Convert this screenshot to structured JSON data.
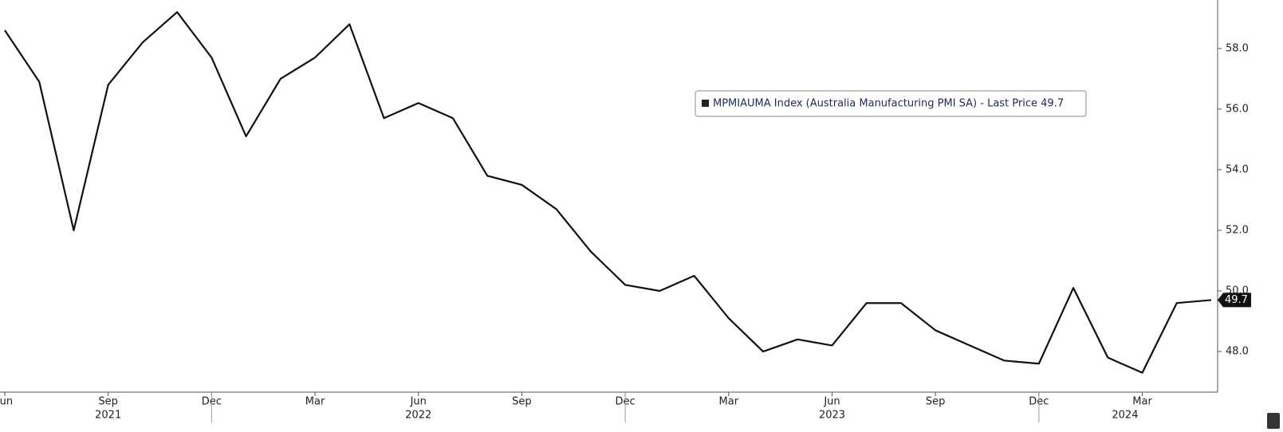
{
  "chart_data": {
    "type": "line",
    "legend": "MPMIAUMA Index (Australia Manufacturing PMI SA) - Last Price 49.7",
    "categories": [
      "Jun",
      null,
      null,
      "Sep",
      null,
      null,
      "Dec",
      null,
      null,
      "Mar",
      null,
      null,
      "Jun",
      null,
      null,
      "Sep",
      null,
      null,
      "Dec",
      null,
      null,
      "Mar",
      null,
      null,
      "Jun",
      null,
      null,
      "Sep",
      null,
      null,
      "Dec",
      null,
      null,
      "Mar",
      null,
      null
    ],
    "year_labels": [
      "2021",
      "2022",
      "2023",
      "2024"
    ],
    "series": [
      {
        "name": "MPMIAUMA Index",
        "color": "#111111",
        "values": [
          58.6,
          56.9,
          52.0,
          56.8,
          58.2,
          59.2,
          57.7,
          55.1,
          57.0,
          57.7,
          58.8,
          55.7,
          56.2,
          55.7,
          53.8,
          53.5,
          52.7,
          51.3,
          50.2,
          50.0,
          50.5,
          49.1,
          48.0,
          48.4,
          48.2,
          49.6,
          49.6,
          48.7,
          48.2,
          47.7,
          47.6,
          50.1,
          47.8,
          47.3,
          49.6,
          49.7
        ]
      }
    ],
    "ylim": [
      46.66,
      59.6
    ],
    "yticks": [
      {
        "value": 48,
        "label": "48.0"
      },
      {
        "value": 50,
        "label": "50.0"
      },
      {
        "value": 52,
        "label": "52.0"
      },
      {
        "value": 54,
        "label": "54.0"
      },
      {
        "value": 56,
        "label": "56.0"
      },
      {
        "value": 58,
        "label": "58.0"
      }
    ],
    "grid": false
  }
}
